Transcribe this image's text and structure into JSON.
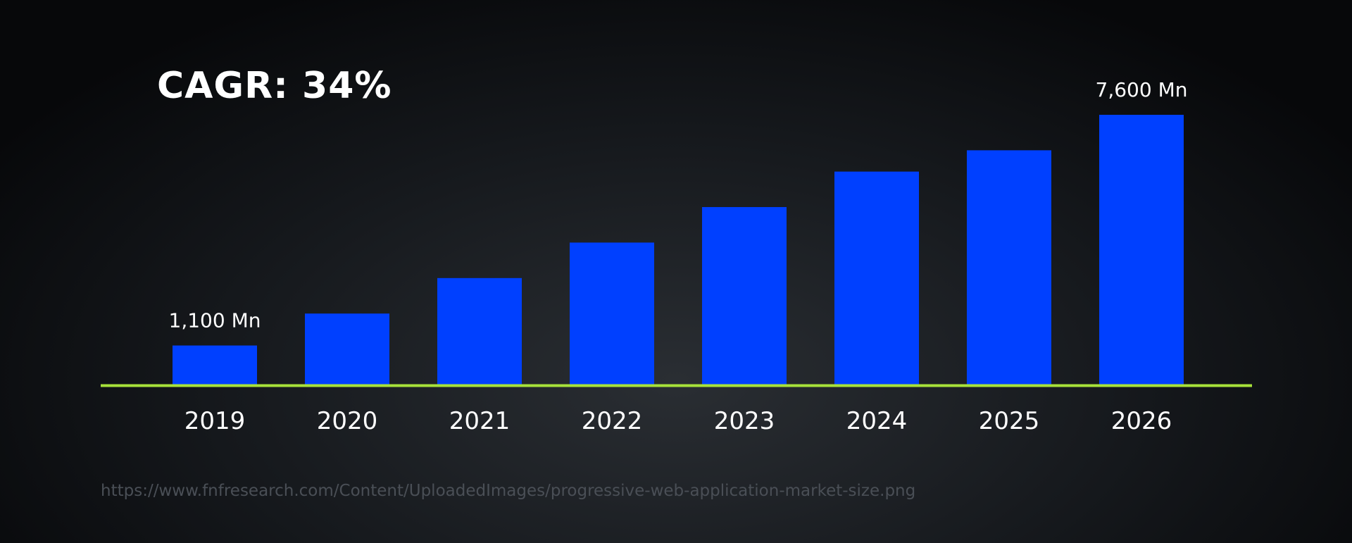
{
  "chart_data": {
    "type": "bar",
    "title": "CAGR: 34%",
    "categories": [
      "2019",
      "2020",
      "2021",
      "2022",
      "2023",
      "2024",
      "2025",
      "2026"
    ],
    "values": [
      1100,
      2000,
      3000,
      4000,
      5000,
      6000,
      6600,
      7600
    ],
    "data_labels": [
      {
        "index": 0,
        "text": "1,100 Mn"
      },
      {
        "index": 7,
        "text": "7,600 Mn"
      }
    ],
    "xlabel": "",
    "ylabel": "",
    "ylim": [
      0,
      7600
    ],
    "grid": false,
    "colors": {
      "bar": "#0040ff",
      "baseline": "#a8e23a",
      "text": "#ffffff"
    }
  },
  "source": {
    "url": "https://www.fnfresearch.com/Content/UploadedImages/progressive-web-application-market-size.png"
  }
}
